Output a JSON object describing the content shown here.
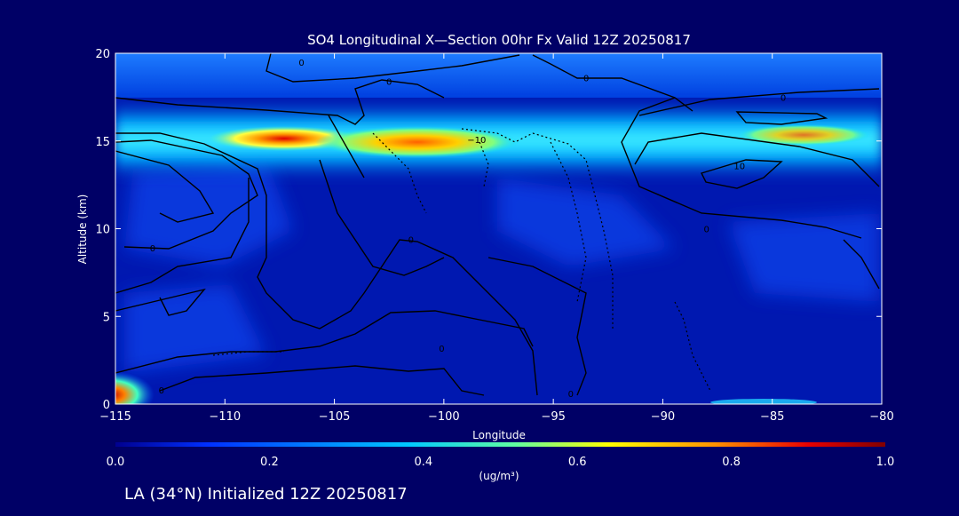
{
  "chart_data": {
    "type": "heatmap",
    "title": "SO4 Longitudinal X—Section 00hr  Fx Valid 12Z 20250817",
    "xlabel": "Longitude",
    "ylabel": "Altitude (km)",
    "xlim": [
      -115,
      -80
    ],
    "ylim": [
      0,
      20
    ],
    "x_ticks": [
      "−115",
      "−110",
      "−105",
      "−100",
      "−95",
      "−90",
      "−85",
      "−80"
    ],
    "y_ticks": [
      "0",
      "5",
      "10",
      "15",
      "20"
    ],
    "colorbar": {
      "min": 0.0,
      "max": 1.0,
      "ticks": [
        "0.0",
        "0.2",
        "0.4",
        "0.6",
        "0.8",
        "1.0"
      ],
      "unit_label": "(ug/m³)",
      "colors": [
        "#00008f",
        "#0030ff",
        "#00c8ff",
        "#60ffa0",
        "#ffff00",
        "#ff9000",
        "#e80000",
        "#800000"
      ]
    },
    "concentration_layers": [
      {
        "lon_start": -115,
        "lon_end": -80,
        "alt": 15.2,
        "value": 0.45
      },
      {
        "lon_start": -109,
        "lon_end": -106,
        "alt": 15.0,
        "value": 0.85
      },
      {
        "lon_start": -104,
        "lon_end": -97,
        "alt": 14.7,
        "value": 0.7
      },
      {
        "lon_start": -87,
        "lon_end": -82,
        "alt": 15.1,
        "value": 0.6
      },
      {
        "lon_start": -115,
        "lon_end": -114.5,
        "alt": 0.5,
        "value": 0.95
      }
    ],
    "contour_labels": [
      {
        "text": "0",
        "lon": -106.5,
        "alt": 19.5
      },
      {
        "text": "0",
        "lon": -102.5,
        "alt": 18.4
      },
      {
        "text": "0",
        "lon": -93.5,
        "alt": 18.6
      },
      {
        "text": "0",
        "lon": -84.5,
        "alt": 17.5
      },
      {
        "text": "−10",
        "lon": -98.5,
        "alt": 15.1
      },
      {
        "text": "10",
        "lon": -86.5,
        "alt": 13.6
      },
      {
        "text": "0",
        "lon": -113.3,
        "alt": 8.9
      },
      {
        "text": "0",
        "lon": -101.5,
        "alt": 9.4
      },
      {
        "text": "0",
        "lon": -88.0,
        "alt": 10.0
      },
      {
        "text": "0",
        "lon": -100.1,
        "alt": 3.2
      },
      {
        "text": "0",
        "lon": -112.9,
        "alt": 0.8
      },
      {
        "text": "0",
        "lon": -94.2,
        "alt": 0.6
      }
    ]
  },
  "footer": {
    "location_text": "LA (34°N) Initialized 12Z 20250817"
  }
}
